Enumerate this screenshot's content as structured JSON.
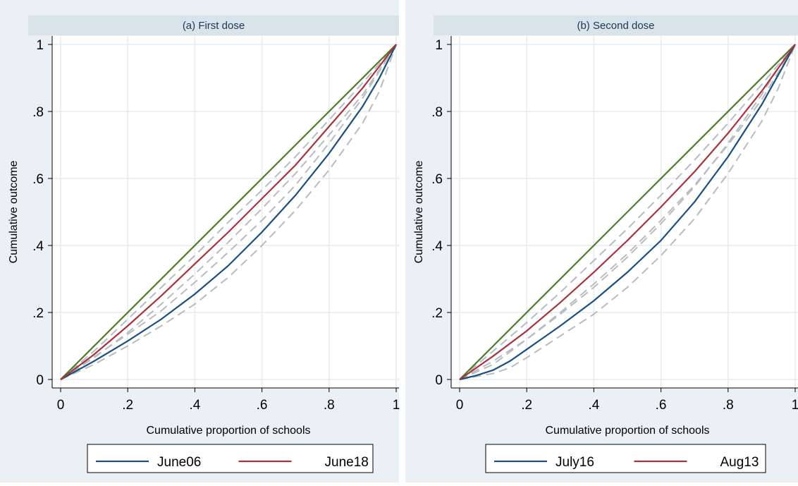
{
  "colors": {
    "outer_background": "#eaf0f3",
    "plot_background": "#ffffff",
    "grid": "#e6ecf0",
    "title_strip": "#d9e4ea",
    "title_text": "#1f3552",
    "axis_text": "#000000",
    "equality_line": "#4f7a28",
    "series_blue": "#1a4f80",
    "series_red": "#a8323e",
    "dashed": "#b8bcc0"
  },
  "chart_data": [
    {
      "type": "line",
      "title": "(a) First dose",
      "xlabel": "Cumulative proportion of schools",
      "ylabel": "Cumulative outcome",
      "xlim": [
        0,
        1
      ],
      "ylim": [
        0,
        1
      ],
      "xticks": [
        0,
        0.2,
        0.4,
        0.6,
        0.8,
        1
      ],
      "xtick_labels": [
        "0",
        ".2",
        ".4",
        ".6",
        ".8",
        "1"
      ],
      "yticks": [
        0,
        0.2,
        0.4,
        0.6,
        0.8,
        1
      ],
      "ytick_labels": [
        "0",
        ".2",
        ".4",
        ".6",
        ".8",
        "1"
      ],
      "grid": true,
      "legend_position": "bottom",
      "equality_line": {
        "x": [
          0,
          1
        ],
        "y": [
          0,
          1
        ],
        "color": "#4f7a28"
      },
      "series": [
        {
          "name": "June06",
          "color": "#1a4f80",
          "x": [
            0,
            0.1,
            0.2,
            0.3,
            0.4,
            0.5,
            0.6,
            0.7,
            0.8,
            0.9,
            0.95,
            1
          ],
          "y": [
            0,
            0.055,
            0.115,
            0.18,
            0.255,
            0.34,
            0.44,
            0.55,
            0.675,
            0.815,
            0.9,
            1
          ]
        },
        {
          "name": "June18",
          "color": "#a8323e",
          "x": [
            0,
            0.1,
            0.2,
            0.3,
            0.4,
            0.5,
            0.6,
            0.7,
            0.8,
            0.9,
            1
          ],
          "y": [
            0,
            0.075,
            0.16,
            0.25,
            0.345,
            0.44,
            0.54,
            0.64,
            0.755,
            0.87,
            1
          ]
        }
      ],
      "confidence_bands": [
        {
          "x": [
            0,
            0.1,
            0.2,
            0.3,
            0.4,
            0.5,
            0.6,
            0.7,
            0.8,
            0.9,
            0.95,
            1
          ],
          "y": [
            0,
            0.045,
            0.1,
            0.16,
            0.225,
            0.305,
            0.4,
            0.505,
            0.625,
            0.765,
            0.86,
            1
          ]
        },
        {
          "x": [
            0,
            0.1,
            0.2,
            0.3,
            0.4,
            0.5,
            0.6,
            0.7,
            0.8,
            0.9,
            0.95,
            1
          ],
          "y": [
            0,
            0.068,
            0.135,
            0.205,
            0.29,
            0.38,
            0.475,
            0.58,
            0.705,
            0.84,
            0.92,
            1
          ]
        },
        {
          "x": [
            0,
            0.1,
            0.2,
            0.3,
            0.4,
            0.5,
            0.6,
            0.7,
            0.8,
            0.9,
            1
          ],
          "y": [
            0,
            0.065,
            0.14,
            0.225,
            0.315,
            0.41,
            0.51,
            0.615,
            0.73,
            0.85,
            1
          ]
        },
        {
          "x": [
            0,
            0.1,
            0.2,
            0.3,
            0.4,
            0.5,
            0.6,
            0.7,
            0.8,
            0.9,
            1
          ],
          "y": [
            0,
            0.085,
            0.18,
            0.275,
            0.37,
            0.47,
            0.565,
            0.665,
            0.775,
            0.885,
            1
          ]
        }
      ],
      "legend": [
        {
          "label": "June06",
          "color": "#1a4f80"
        },
        {
          "label": "June18",
          "color": "#a8323e"
        }
      ]
    },
    {
      "type": "line",
      "title": "(b) Second dose",
      "xlabel": "Cumulative proportion of schools",
      "ylabel": "Cumulative outcome",
      "xlim": [
        0,
        1
      ],
      "ylim": [
        0,
        1
      ],
      "xticks": [
        0,
        0.2,
        0.4,
        0.6,
        0.8,
        1
      ],
      "xtick_labels": [
        "0",
        ".2",
        ".4",
        ".6",
        ".8",
        "1"
      ],
      "yticks": [
        0,
        0.2,
        0.4,
        0.6,
        0.8,
        1
      ],
      "ytick_labels": [
        "0",
        ".2",
        ".4",
        ".6",
        ".8",
        "1"
      ],
      "grid": true,
      "legend_position": "bottom",
      "equality_line": {
        "x": [
          0,
          1
        ],
        "y": [
          0,
          1
        ],
        "color": "#4f7a28"
      },
      "series": [
        {
          "name": "July16",
          "color": "#1a4f80",
          "x": [
            0,
            0.05,
            0.1,
            0.15,
            0.2,
            0.3,
            0.4,
            0.5,
            0.6,
            0.7,
            0.8,
            0.9,
            0.95,
            1
          ],
          "y": [
            0,
            0.012,
            0.028,
            0.055,
            0.09,
            0.16,
            0.235,
            0.32,
            0.415,
            0.53,
            0.665,
            0.82,
            0.91,
            1
          ]
        },
        {
          "name": "Aug13",
          "color": "#a8323e",
          "x": [
            0,
            0.1,
            0.2,
            0.3,
            0.4,
            0.5,
            0.6,
            0.7,
            0.8,
            0.9,
            1
          ],
          "y": [
            0,
            0.07,
            0.145,
            0.23,
            0.32,
            0.415,
            0.515,
            0.62,
            0.735,
            0.86,
            1
          ]
        }
      ],
      "confidence_bands": [
        {
          "x": [
            0,
            0.1,
            0.15,
            0.2,
            0.3,
            0.4,
            0.5,
            0.6,
            0.7,
            0.8,
            0.9,
            0.95,
            1
          ],
          "y": [
            0,
            0.018,
            0.035,
            0.065,
            0.13,
            0.195,
            0.275,
            0.37,
            0.48,
            0.615,
            0.77,
            0.87,
            1
          ]
        },
        {
          "x": [
            0,
            0.1,
            0.2,
            0.3,
            0.4,
            0.5,
            0.6,
            0.7,
            0.8,
            0.9,
            0.95,
            1
          ],
          "y": [
            0,
            0.045,
            0.12,
            0.195,
            0.275,
            0.365,
            0.465,
            0.575,
            0.705,
            0.85,
            0.93,
            1
          ]
        },
        {
          "x": [
            0,
            0.1,
            0.2,
            0.3,
            0.4,
            0.5,
            0.6,
            0.7,
            0.8,
            0.9,
            1
          ],
          "y": [
            0,
            0.055,
            0.12,
            0.2,
            0.285,
            0.375,
            0.475,
            0.58,
            0.7,
            0.835,
            1
          ]
        },
        {
          "x": [
            0,
            0.1,
            0.2,
            0.3,
            0.4,
            0.5,
            0.6,
            0.7,
            0.8,
            0.9,
            1
          ],
          "y": [
            0,
            0.085,
            0.17,
            0.26,
            0.355,
            0.45,
            0.55,
            0.655,
            0.765,
            0.88,
            1
          ]
        }
      ],
      "legend": [
        {
          "label": "July16",
          "color": "#1a4f80"
        },
        {
          "label": "Aug13",
          "color": "#a8323e"
        }
      ]
    }
  ]
}
